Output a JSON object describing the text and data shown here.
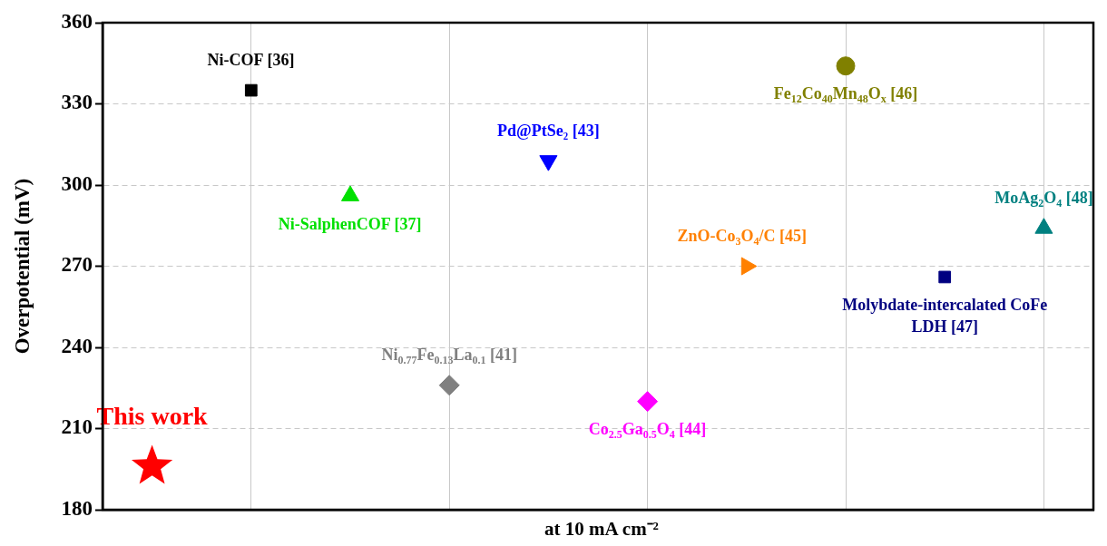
{
  "chart_data": {
    "type": "scatter",
    "ylabel": "Overpotential (mV)",
    "xlabel": "at 10 mA cm⁻²",
    "categories": [
      null,
      null,
      null,
      null,
      null,
      null,
      null,
      null,
      null,
      null
    ],
    "ylim": [
      180,
      360
    ],
    "yticks": [
      180,
      210,
      240,
      270,
      300,
      330,
      360
    ],
    "grid": true,
    "tick_labels": "y",
    "legend": false,
    "series": [
      {
        "name": "This work",
        "color": "#ff0000",
        "marker": "star",
        "values": [
          196,
          null,
          null,
          null,
          null,
          null,
          null,
          null,
          null,
          null
        ]
      },
      {
        "name": "Ni-COF [36]",
        "color": "#000000",
        "marker": "square",
        "values": [
          null,
          335,
          null,
          null,
          null,
          null,
          null,
          null,
          null,
          null
        ]
      },
      {
        "name": "Ni-SalphenCOF [37]",
        "color": "#00e000",
        "marker": "triangle",
        "values": [
          null,
          null,
          296,
          null,
          null,
          null,
          null,
          null,
          null,
          null
        ]
      },
      {
        "name": "Ni$_{0.77}$Fe$_{0.13}$La$_{0.1}$ [41]",
        "color": "#808080",
        "marker": "diamond",
        "values": [
          null,
          null,
          null,
          226,
          null,
          null,
          null,
          null,
          null,
          null
        ]
      },
      {
        "name": "Pd@PtSe₂ [43]",
        "color": "#0000ff",
        "marker": "triangle",
        "values": [
          null,
          null,
          null,
          null,
          309,
          null,
          null,
          null,
          null,
          null
        ]
      },
      {
        "name": "Co$_{2.5}$Ga$_{0.5}$O$_{4}$ [44]",
        "color": "#ff00ff",
        "marker": "diamond",
        "values": [
          null,
          null,
          null,
          null,
          null,
          220,
          null,
          null,
          null,
          null
        ]
      },
      {
        "name": "ZnO-Co$_{3}$O$_{4}$/C [45]",
        "color": "#ff8000",
        "marker": "triangle",
        "values": [
          null,
          null,
          null,
          null,
          null,
          null,
          270,
          null,
          null,
          null
        ]
      },
      {
        "name": "Fe$_{12}$Co$_{40}$Mn$_{48}$O$_{x}$ [46]",
        "color": "#808000",
        "marker": "circle",
        "values": [
          null,
          null,
          null,
          null,
          null,
          null,
          null,
          344,
          null,
          null
        ]
      },
      {
        "name": "Molybdate-intercalated CoFe LDH [47]",
        "color": "#000080",
        "marker": "square",
        "values": [
          null,
          null,
          null,
          null,
          null,
          null,
          null,
          null,
          266,
          null
        ]
      },
      {
        "name": "MoAg$_{2}$O$_{4}$ [48]",
        "color": "#008080",
        "marker": "triangle",
        "values": [
          null,
          null,
          null,
          null,
          null,
          null,
          null,
          null,
          null,
          284
        ]
      }
    ]
  }
}
